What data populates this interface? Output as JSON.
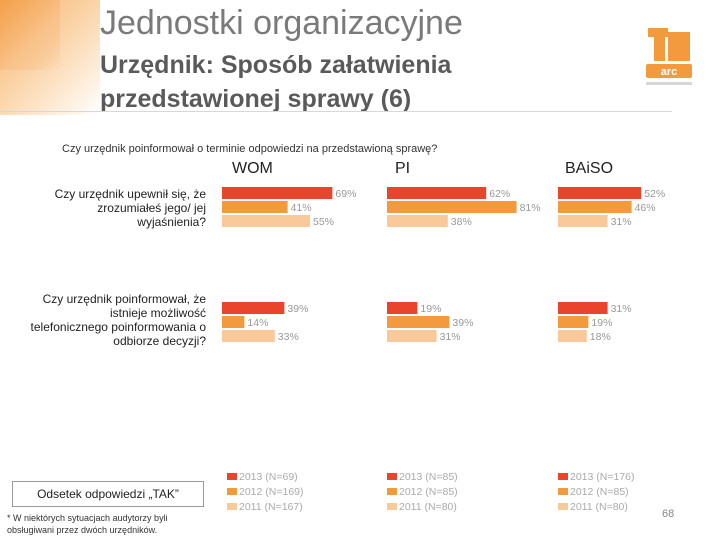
{
  "slide": {
    "title": "Jednostki organizacyjne",
    "subtitle": "Urzędnik: Sposób załatwienia przedstawionej sprawy (6)",
    "question": "Czy urzędnik poinformował o terminie odpowiedzi na przedstawioną sprawę?",
    "footer_box": "Odsetek odpowiedzi „TAK”",
    "footnote": "* W niektórych sytuacjach audytorzy byli obsługiwani przez dwóch urzędników.",
    "page_number": "68"
  },
  "colors": {
    "2013": "#e8452c",
    "2012": "#f39a3f",
    "2011": "#f9c99a",
    "logo": "#f39a3f"
  },
  "chart_data": {
    "type": "bar",
    "orientation": "horizontal",
    "unit": "%",
    "xlim": [
      0,
      100
    ],
    "groups": [
      "WOM",
      "PI",
      "BAiSO"
    ],
    "rows": [
      "Czy urzędnik upewnił się, że zrozumiałeś jego/ jej wyjaśnienia?",
      "Czy urzędnik poinformował, że istnieje możliwość telefonicznego poinformowania o odbiorze decyzji?"
    ],
    "series": [
      {
        "name": "2013",
        "color": "#e8452c",
        "values": [
          [
            69,
            39
          ],
          [
            62,
            19
          ],
          [
            52,
            31
          ]
        ]
      },
      {
        "name": "2012",
        "color": "#f39a3f",
        "values": [
          [
            41,
            14
          ],
          [
            81,
            39
          ],
          [
            46,
            19
          ]
        ]
      },
      {
        "name": "2011",
        "color": "#f9c99a",
        "values": [
          [
            55,
            33
          ],
          [
            38,
            31
          ],
          [
            31,
            18
          ]
        ]
      }
    ],
    "value_labels": [
      [
        [
          "69%",
          "41%",
          "55%"
        ],
        [
          "39%",
          "14%",
          "33%"
        ]
      ],
      [
        [
          "62%",
          "81%",
          "38%"
        ],
        [
          "19%",
          "39%",
          "31%"
        ]
      ],
      [
        [
          "52%",
          "46%",
          "31%"
        ],
        [
          "31%",
          "19%",
          "18%"
        ]
      ]
    ],
    "legends": [
      [
        "2013 (N=69)",
        "2012 (N=169)",
        "2011 (N=167)"
      ],
      [
        "2013 (N=85)",
        "2012 (N=85)",
        "2011 (N=80)"
      ],
      [
        "2013 (N=176)",
        "2012 (N=85)",
        "2011 (N=80)"
      ]
    ]
  }
}
